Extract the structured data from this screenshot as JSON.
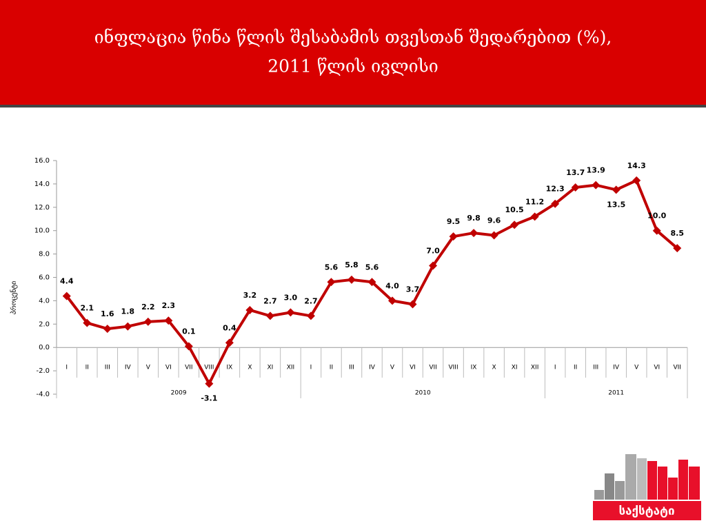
{
  "chart_data": {
    "type": "line",
    "title": "ინფლაცია წინა წლის შესაბამის თვესთან შედარებით (%),",
    "subtitle": "2011 წლის ივლისი",
    "y_label": "პროცენტი",
    "groups": [
      {
        "name": "2009",
        "categories": [
          "I",
          "II",
          "III",
          "IV",
          "V",
          "VI",
          "VII",
          "VIII",
          "IX",
          "X",
          "XI",
          "XII"
        ]
      },
      {
        "name": "2010",
        "categories": [
          "I",
          "II",
          "III",
          "IV",
          "V",
          "VI",
          "VII",
          "VIII",
          "IX",
          "X",
          "XI",
          "XII"
        ]
      },
      {
        "name": "2011",
        "categories": [
          "I",
          "II",
          "III",
          "IV",
          "V",
          "VI",
          "VII"
        ]
      }
    ],
    "color": "#c00000",
    "values": [
      4.4,
      2.1,
      1.6,
      1.8,
      2.2,
      2.3,
      0.1,
      -3.1,
      0.4,
      3.2,
      2.7,
      3.0,
      2.7,
      5.6,
      5.8,
      5.6,
      4.0,
      3.7,
      7.0,
      9.5,
      9.8,
      9.6,
      10.5,
      11.2,
      12.3,
      13.7,
      13.9,
      13.5,
      14.3,
      10.0,
      8.5
    ],
    "value_labels": [
      "4.4",
      "2.1",
      "1.6",
      "1.8",
      "2.2",
      "2.3",
      "0.1",
      "-3.1",
      "0.4",
      "3.2",
      "2.7",
      "3.0",
      "2.7",
      "5.6",
      "5.8",
      "5.6",
      "4.0",
      "3.7",
      "7.0",
      "9.5",
      "9.8",
      "9.6",
      "10.5",
      "11.2",
      "12.3",
      "13.7",
      "13.9",
      "13.5",
      "14.3",
      "10.0",
      "8.5"
    ],
    "ylim": [
      -4,
      16
    ],
    "yticks": [
      {
        "value": -4,
        "label": "-4.0"
      },
      {
        "value": -2,
        "label": "-2.0"
      },
      {
        "value": 0,
        "label": "0.0"
      },
      {
        "value": 2,
        "label": "2.0"
      },
      {
        "value": 4,
        "label": "4.0"
      },
      {
        "value": 6,
        "label": "6.0"
      },
      {
        "value": 8,
        "label": "8.0"
      },
      {
        "value": 10,
        "label": "10.0"
      },
      {
        "value": 12,
        "label": "12.0"
      },
      {
        "value": 14,
        "label": "14.0"
      },
      {
        "value": 16,
        "label": "16.0"
      }
    ]
  },
  "logo": {
    "text": "საქსტატი"
  }
}
